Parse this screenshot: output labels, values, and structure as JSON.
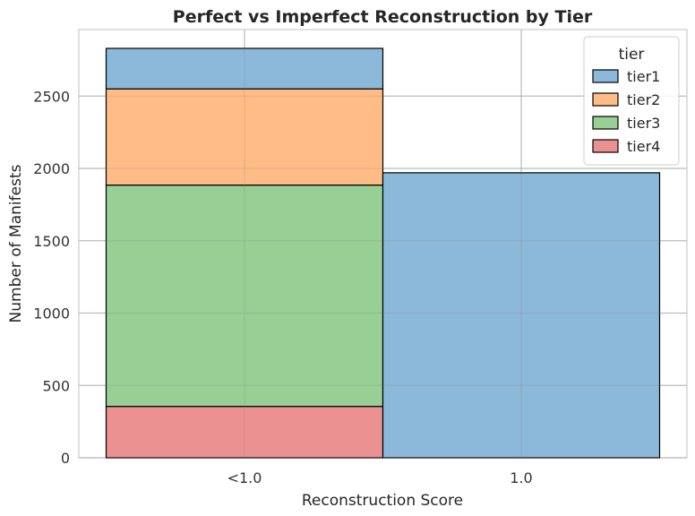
{
  "chart_data": {
    "type": "bar",
    "stacked": true,
    "title": "Perfect vs Imperfect Reconstruction by Tier",
    "xlabel": "Reconstruction Score",
    "ylabel": "Number of Manifests",
    "categories": [
      "<1.0",
      "1.0"
    ],
    "ylim": [
      0,
      2960
    ],
    "yticks": [
      0,
      500,
      1000,
      1500,
      2000,
      2500
    ],
    "grid": true,
    "legend": {
      "title": "tier",
      "position": "top-right"
    },
    "series": [
      {
        "name": "tier1",
        "values": [
          280,
          1970
        ],
        "color": "#8cb8d9"
      },
      {
        "name": "tier2",
        "values": [
          665,
          0
        ],
        "color": "#ffbc86"
      },
      {
        "name": "tier3",
        "values": [
          1530,
          0
        ],
        "color": "#97cf94"
      },
      {
        "name": "tier4",
        "values": [
          355,
          0
        ],
        "color": "#eb9192"
      }
    ]
  }
}
